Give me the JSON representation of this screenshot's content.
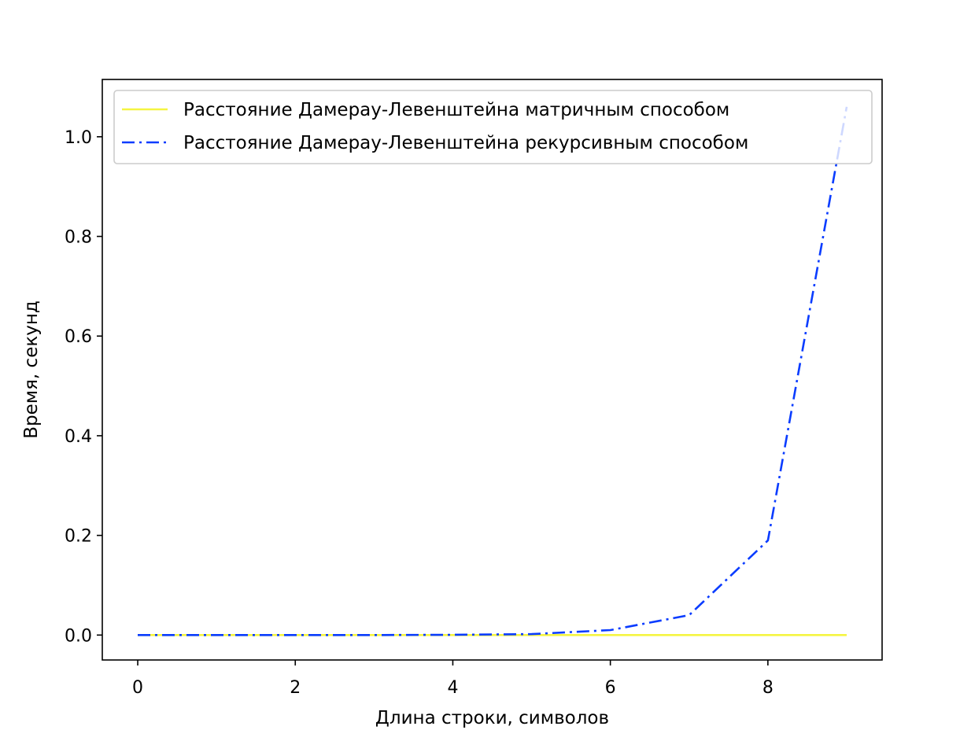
{
  "chart_data": {
    "type": "line",
    "title": "",
    "xlabel": "Длина строки, символов",
    "ylabel": "Время, секунд",
    "xlim": [
      -0.45,
      9.45
    ],
    "ylim": [
      -0.05,
      1.115
    ],
    "xticks": [
      0,
      2,
      4,
      6,
      8
    ],
    "xtick_labels": [
      "0",
      "2",
      "4",
      "6",
      "8"
    ],
    "yticks": [
      0.0,
      0.2,
      0.4,
      0.6,
      0.8,
      1.0
    ],
    "ytick_labels": [
      "0.0",
      "0.2",
      "0.4",
      "0.6",
      "0.8",
      "1.0"
    ],
    "grid": false,
    "legend_position": "top-left",
    "x": [
      0,
      1,
      2,
      3,
      4,
      5,
      6,
      7,
      8,
      9
    ],
    "series": [
      {
        "name": "Расстояние Дамерау-Левенштейна матричным способом",
        "values": [
          0.0,
          0.0,
          0.0,
          0.0,
          0.0,
          0.0,
          0.0,
          0.0,
          0.0,
          0.0
        ],
        "color": "#f5f542",
        "line_style": "solid"
      },
      {
        "name": "Расстояние Дамерау-Левенштейна рекурсивным способом",
        "values": [
          0.0,
          0.0,
          0.0,
          0.0,
          0.0005,
          0.002,
          0.01,
          0.04,
          0.19,
          1.06
        ],
        "color": "#0a3cff",
        "line_style": "dashdot"
      }
    ]
  }
}
